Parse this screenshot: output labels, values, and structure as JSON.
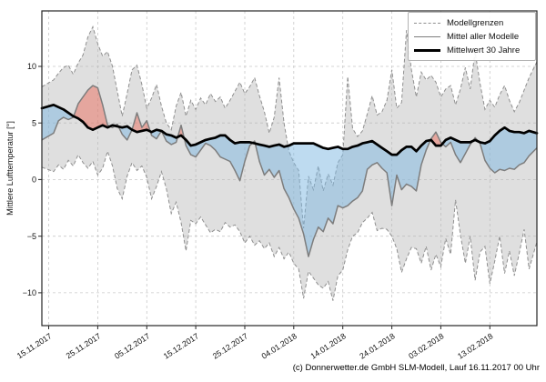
{
  "meta": {
    "caption": "(c) Donnerwetter.de GmbH SLM-Modell, Lauf 16.11.2017 00 Uhr"
  },
  "chart_data": {
    "type": "line",
    "title": "",
    "xlabel": "",
    "ylabel": "Mittlere Lufttemperatur [°]",
    "ylim": [
      -12.9,
      14.9
    ],
    "grid": true,
    "legend_position": "upper right",
    "legend": [
      {
        "label": "Modellgrenzen",
        "style": "dashed-gray"
      },
      {
        "label": "Mittel aller Modelle",
        "style": "solid-gray"
      },
      {
        "label": "Mittelwert 30 Jahre",
        "style": "thick-black"
      }
    ],
    "yticks": [
      {
        "v": 10,
        "label": "10"
      },
      {
        "v": 5,
        "label": "5"
      },
      {
        "v": 0,
        "label": "0"
      },
      {
        "v": -5,
        "label": "−5"
      },
      {
        "v": -10,
        "label": "−10"
      }
    ],
    "x_ticks": [
      {
        "day": 0,
        "label": "15.11.2017"
      },
      {
        "day": 10,
        "label": "25.11.2017"
      },
      {
        "day": 20,
        "label": "05.12.2017"
      },
      {
        "day": 30,
        "label": "15.12.2017"
      },
      {
        "day": 40,
        "label": "25.12.2017"
      },
      {
        "day": 50,
        "label": "04.01.2018"
      },
      {
        "day": 60,
        "label": "14.01.2018"
      },
      {
        "day": 70,
        "label": "24.01.2018"
      },
      {
        "day": 80,
        "label": "03.02.2018"
      },
      {
        "day": 90,
        "label": "13.02.2018"
      }
    ],
    "x_start_date": "15.11.2017",
    "x_resolution": "daily",
    "series": [
      {
        "id": "upper",
        "name": "Modellgrenze oben",
        "values": [
          8.2,
          8.8,
          9.4,
          9.9,
          10.1,
          9.3,
          10.3,
          11.0,
          12.6,
          13.5,
          12.0,
          10.9,
          11.3,
          10.0,
          7.8,
          5.6,
          7.6,
          9.7,
          10.1,
          8.4,
          6.3,
          7.2,
          8.4,
          6.5,
          5.0,
          4.4,
          6.5,
          7.7,
          5.6,
          7.0,
          6.2,
          7.2,
          6.6,
          7.6,
          6.9,
          7.3,
          6.3,
          7.0,
          7.8,
          8.6,
          7.6,
          8.2,
          9.0,
          7.4,
          6.0,
          4.1,
          5.5,
          9.0,
          5.0,
          2.5,
          1.5,
          0.8,
          -4.3,
          0.3,
          -0.9,
          1.2,
          -1.0,
          0.5,
          -0.5,
          1.5,
          2.2,
          9.1,
          4.5,
          3.8,
          4.3,
          5.8,
          7.4,
          5.7,
          6.0,
          7.0,
          9.7,
          6.3,
          6.8,
          13.2,
          9.7,
          7.3,
          9.5,
          8.8,
          9.2,
          8.6,
          7.3,
          8.0,
          8.3,
          6.6,
          8.0,
          9.9,
          8.0,
          11.3,
          8.5,
          6.2,
          7.0,
          6.4,
          7.5,
          8.3,
          7.0,
          6.0,
          6.8,
          7.9,
          9.0,
          10.4
        ]
      },
      {
        "id": "lower",
        "name": "Modellgrenze unten",
        "values": [
          1.1,
          0.7,
          1.3,
          0.9,
          1.7,
          1.2,
          2.2,
          1.5,
          1.0,
          1.6,
          0.4,
          1.0,
          2.5,
          1.2,
          -0.8,
          -1.7,
          0.3,
          1.5,
          0.8,
          1.2,
          0.2,
          -1.7,
          -0.6,
          0.7,
          -0.8,
          -3.0,
          -2.0,
          -3.8,
          -6.3,
          -3.6,
          -3.9,
          -3.3,
          -4.0,
          -4.7,
          -4.4,
          -4.6,
          -3.8,
          -4.2,
          -4.0,
          -4.6,
          -5.6,
          -5.0,
          -5.8,
          -5.4,
          -6.1,
          -5.6,
          -6.8,
          -6.0,
          -7.0,
          -6.4,
          -7.4,
          -7.9,
          -10.5,
          -8.1,
          -8.7,
          -9.3,
          -9.6,
          -9.0,
          -10.7,
          -8.5,
          -8.0,
          -6.2,
          -5.0,
          -4.7,
          -3.8,
          -3.4,
          -2.9,
          -4.5,
          -4.3,
          -4.4,
          -5.0,
          -6.1,
          -8.2,
          -7.0,
          -6.0,
          -6.1,
          -7.4,
          -5.9,
          -8.0,
          -6.6,
          -7.7,
          -5.2,
          -6.6,
          -1.8,
          -4.9,
          -7.4,
          -5.0,
          -8.9,
          -6.4,
          -5.9,
          -9.2,
          -7.2,
          -5.0,
          -8.3,
          -6.3,
          -8.5,
          -6.5,
          -4.4,
          -7.9,
          -5.5
        ]
      },
      {
        "id": "mean",
        "name": "Mittel aller Modelle",
        "values": [
          3.5,
          4.1,
          5.2,
          5.5,
          5.3,
          5.5,
          6.7,
          7.3,
          7.9,
          8.3,
          8.1,
          6.6,
          4.8,
          4.6,
          4.9,
          4.0,
          3.5,
          4.4,
          5.9,
          4.6,
          5.2,
          3.9,
          3.6,
          4.3,
          3.4,
          3.1,
          3.3,
          4.8,
          3.0,
          2.2,
          2.0,
          2.6,
          3.2,
          3.0,
          2.6,
          2.0,
          1.8,
          1.6,
          0.8,
          -0.1,
          1.6,
          3.0,
          3.4,
          1.6,
          0.4,
          0.9,
          0.2,
          0.8,
          -0.8,
          -1.6,
          -2.6,
          -3.4,
          -4.8,
          -6.8,
          -5.3,
          -4.2,
          -4.6,
          -3.4,
          -3.9,
          -2.3,
          -2.5,
          -2.3,
          -1.9,
          -1.6,
          -1.0,
          0.9,
          1.3,
          1.5,
          1.0,
          0.6,
          -2.3,
          0.4,
          -0.9,
          -0.4,
          -0.6,
          -1.0,
          1.3,
          2.6,
          3.6,
          4.2,
          3.3,
          2.9,
          3.3,
          2.2,
          1.5,
          2.3,
          3.1,
          3.7,
          3.2,
          1.7,
          1.0,
          0.6,
          0.9,
          0.8,
          1.0,
          0.9,
          1.3,
          1.5,
          2.1,
          2.8
        ]
      },
      {
        "id": "mean30",
        "name": "Mittelwert 30 Jahre",
        "values": [
          6.3,
          6.6,
          6.4,
          6.2,
          5.9,
          5.6,
          5.4,
          5.1,
          4.6,
          4.4,
          4.6,
          4.8,
          4.6,
          4.8,
          4.7,
          4.6,
          4.7,
          4.4,
          4.2,
          4.3,
          4.4,
          4.2,
          4.4,
          4.3,
          4.0,
          3.9,
          3.7,
          3.9,
          3.5,
          3.0,
          3.1,
          3.3,
          3.5,
          3.6,
          3.7,
          3.9,
          3.9,
          3.5,
          3.2,
          3.3,
          3.3,
          3.3,
          3.2,
          3.1,
          3.0,
          2.9,
          3.0,
          3.1,
          2.9,
          3.0,
          3.2,
          3.2,
          3.2,
          3.2,
          3.2,
          3.0,
          2.8,
          2.7,
          2.8,
          2.9,
          2.7,
          2.7,
          2.9,
          3.0,
          3.2,
          3.3,
          3.4,
          3.1,
          2.8,
          2.5,
          2.2,
          2.2,
          2.6,
          2.9,
          2.9,
          2.5,
          3.0,
          3.4,
          3.5,
          3.0,
          3.0,
          3.5,
          3.7,
          3.5,
          3.3,
          3.3,
          3.3,
          3.5,
          3.3,
          3.2,
          3.4,
          3.9,
          4.3,
          4.6,
          4.3,
          4.2,
          4.2,
          4.1,
          4.3,
          4.1
        ]
      }
    ],
    "colors": {
      "band_fill": "rgba(178,178,178,0.42)",
      "band_edge": "#8f8f8f",
      "above_normal_fill": "rgba(233,118,103,0.55)",
      "below_normal_fill": "rgba(126,184,226,0.5)",
      "model_mean_line": "#7d7d7d",
      "climate_mean_line": "#000000",
      "grid": "#c9c9c9",
      "frame": "#262626"
    }
  }
}
